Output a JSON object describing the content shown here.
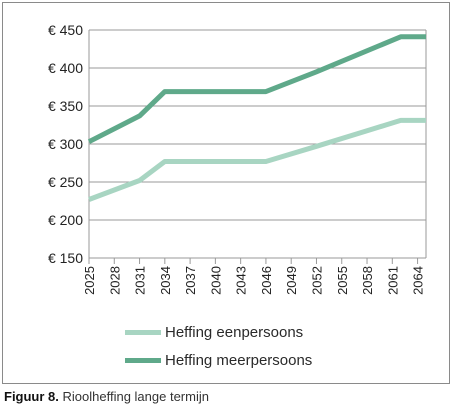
{
  "caption": {
    "label": "Figuur 8.",
    "text": "Rioolheffing lange termijn"
  },
  "chart_data": {
    "type": "line",
    "title": "",
    "xlabel": "",
    "ylabel": "",
    "x": [
      "2025",
      "2028",
      "2031",
      "2034",
      "2037",
      "2040",
      "2043",
      "2046",
      "2049",
      "2052",
      "2055",
      "2058",
      "2061",
      "2064"
    ],
    "ylim": [
      150,
      450
    ],
    "ytick_values": [
      150,
      200,
      250,
      300,
      350,
      400,
      450
    ],
    "ytick_labels": [
      "€ 150",
      "€ 200",
      "€ 250",
      "€ 300",
      "€ 350",
      "€ 400",
      "€ 450"
    ],
    "grid": "horizontal",
    "legend_position": "bottom",
    "series": [
      {
        "name": "Heffing eenpersoons",
        "color": "#a8d5c2",
        "points": [
          [
            2025,
            227
          ],
          [
            2031,
            252
          ],
          [
            2034,
            277
          ],
          [
            2046,
            277
          ],
          [
            2052,
            297
          ],
          [
            2062,
            331
          ],
          [
            2065,
            331
          ]
        ]
      },
      {
        "name": "Heffing meerpersoons",
        "color": "#5fa98a",
        "points": [
          [
            2025,
            303
          ],
          [
            2031,
            337
          ],
          [
            2034,
            369
          ],
          [
            2046,
            369
          ],
          [
            2052,
            395
          ],
          [
            2062,
            441
          ],
          [
            2065,
            441
          ]
        ]
      }
    ]
  }
}
